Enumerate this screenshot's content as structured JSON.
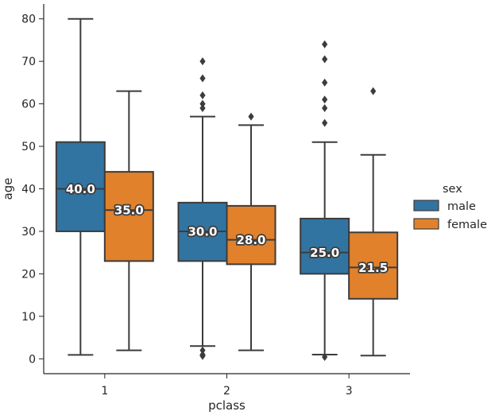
{
  "chart_data": {
    "type": "box",
    "xlabel": "pclass",
    "ylabel": "age",
    "categories": [
      "1",
      "2",
      "3"
    ],
    "ylim": [
      -3.5,
      83.5
    ],
    "yticks": [
      0,
      10,
      20,
      30,
      40,
      50,
      60,
      70,
      80
    ],
    "legend": {
      "title": "sex",
      "position": "right"
    },
    "series": [
      {
        "name": "male",
        "color": "#3274a1",
        "boxes": [
          {
            "category": "1",
            "whisker_low": 0.92,
            "q1": 30.0,
            "median": 40.0,
            "q3": 51.0,
            "whisker_high": 80.0,
            "outliers": []
          },
          {
            "category": "2",
            "whisker_low": 3.0,
            "q1": 23.0,
            "median": 30.0,
            "q3": 36.75,
            "whisker_high": 57.0,
            "outliers": [
              0.67,
              0.83,
              1.0,
              2.0,
              59.0,
              60.0,
              62.0,
              66.0,
              70.0
            ]
          },
          {
            "category": "3",
            "whisker_low": 1.0,
            "q1": 20.0,
            "median": 25.0,
            "q3": 33.0,
            "whisker_high": 51.0,
            "outliers": [
              0.42,
              55.5,
              59.0,
              61.0,
              65.0,
              70.5,
              74.0
            ]
          }
        ]
      },
      {
        "name": "female",
        "color": "#e1812c",
        "boxes": [
          {
            "category": "1",
            "whisker_low": 2.0,
            "q1": 23.0,
            "median": 35.0,
            "q3": 44.0,
            "whisker_high": 63.0,
            "outliers": []
          },
          {
            "category": "2",
            "whisker_low": 2.0,
            "q1": 22.25,
            "median": 28.0,
            "q3": 36.0,
            "whisker_high": 55.0,
            "outliers": [
              57.0
            ]
          },
          {
            "category": "3",
            "whisker_low": 0.75,
            "q1": 14.12,
            "median": 21.5,
            "q3": 29.75,
            "whisker_high": 48.0,
            "outliers": [
              63.0
            ]
          }
        ]
      }
    ],
    "median_labels": [
      "40.0",
      "35.0",
      "30.0",
      "28.0",
      "25.0",
      "21.5"
    ]
  }
}
